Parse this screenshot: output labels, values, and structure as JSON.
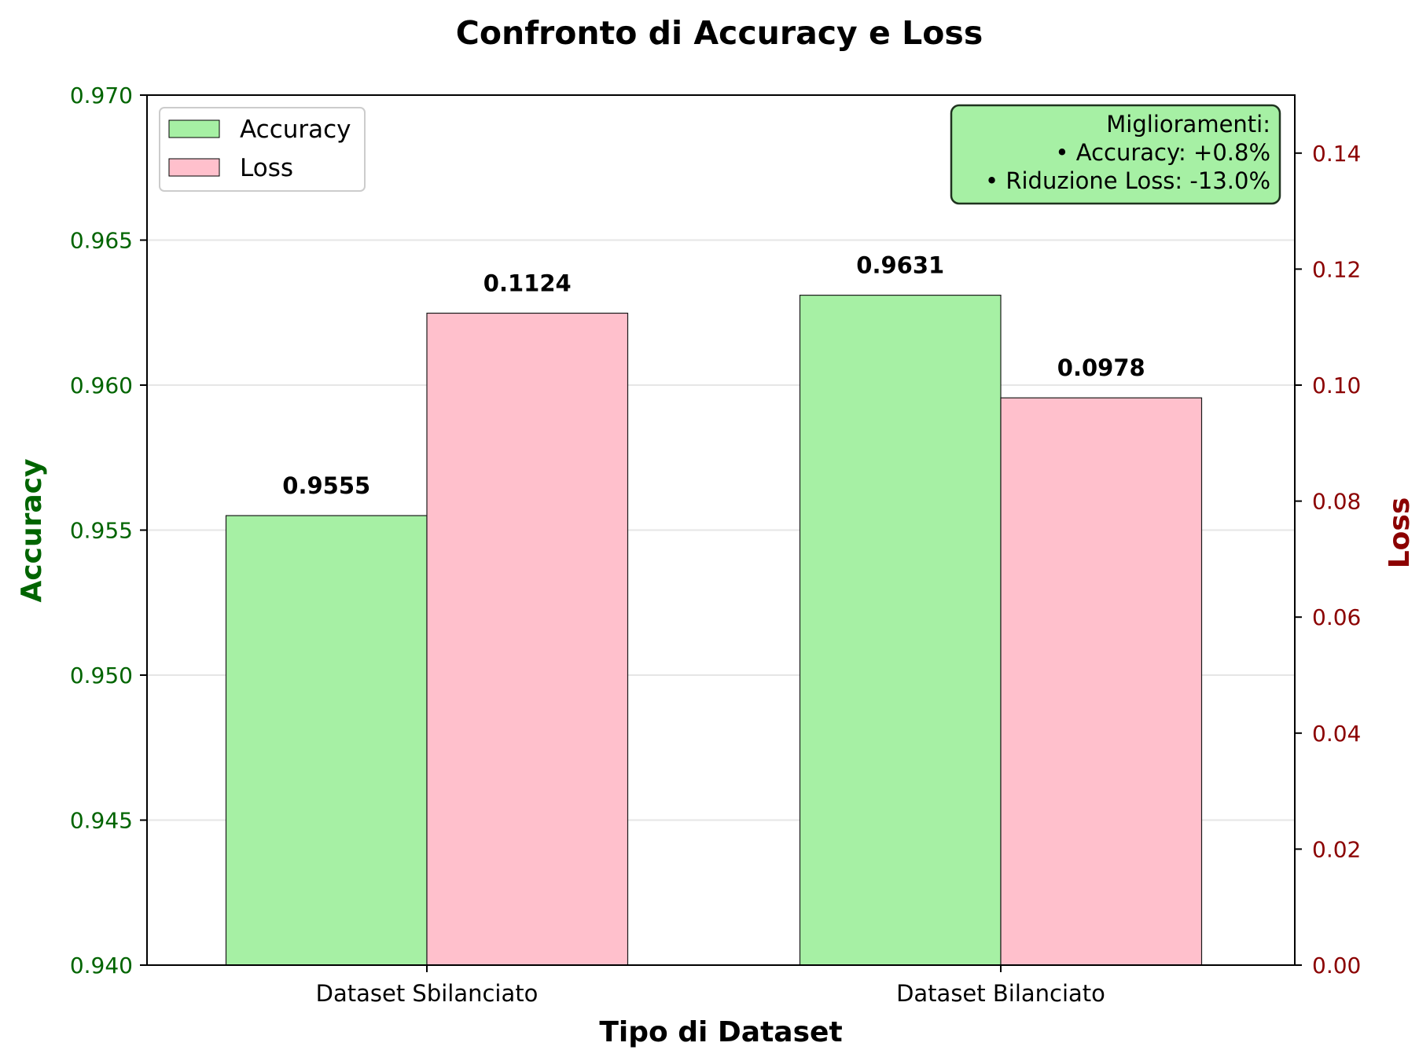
{
  "chart_data": {
    "type": "bar",
    "title": "Confronto di Accuracy e Loss",
    "xlabel": "Tipo di Dataset",
    "categories": [
      "Dataset Sbilanciato",
      "Dataset Bilanciato"
    ],
    "series": [
      {
        "name": "Accuracy",
        "axis": "left",
        "values": [
          0.9555,
          0.9631
        ],
        "value_labels": [
          "0.9555",
          "0.9631"
        ],
        "color": "#a6f0a4"
      },
      {
        "name": "Loss",
        "axis": "right",
        "values": [
          0.1124,
          0.0978
        ],
        "value_labels": [
          "0.1124",
          "0.0978"
        ],
        "color": "#ffc0cc"
      }
    ],
    "y_left": {
      "label": "Accuracy",
      "range": [
        0.94,
        0.97
      ],
      "ticks": [
        0.94,
        0.945,
        0.95,
        0.955,
        0.96,
        0.965,
        0.97
      ],
      "tick_labels": [
        "0.940",
        "0.945",
        "0.950",
        "0.955",
        "0.960",
        "0.965",
        "0.970"
      ],
      "color": "#006400"
    },
    "y_right": {
      "label": "Loss",
      "range": [
        0.0,
        0.15
      ],
      "ticks": [
        0.0,
        0.02,
        0.04,
        0.06,
        0.08,
        0.1,
        0.12,
        0.14
      ],
      "tick_labels": [
        "0.00",
        "0.02",
        "0.04",
        "0.06",
        "0.08",
        "0.10",
        "0.12",
        "0.14"
      ],
      "color": "#8b0000"
    },
    "grid": "horizontal",
    "legend": {
      "placement": "top-left",
      "entries": [
        "Accuracy",
        "Loss"
      ]
    },
    "annotation": {
      "placement": "top-right",
      "lines": [
        "Miglioramenti:",
        "• Accuracy: +0.8%",
        "• Riduzione Loss: -13.0%"
      ],
      "background": "#a6f0a4"
    }
  }
}
